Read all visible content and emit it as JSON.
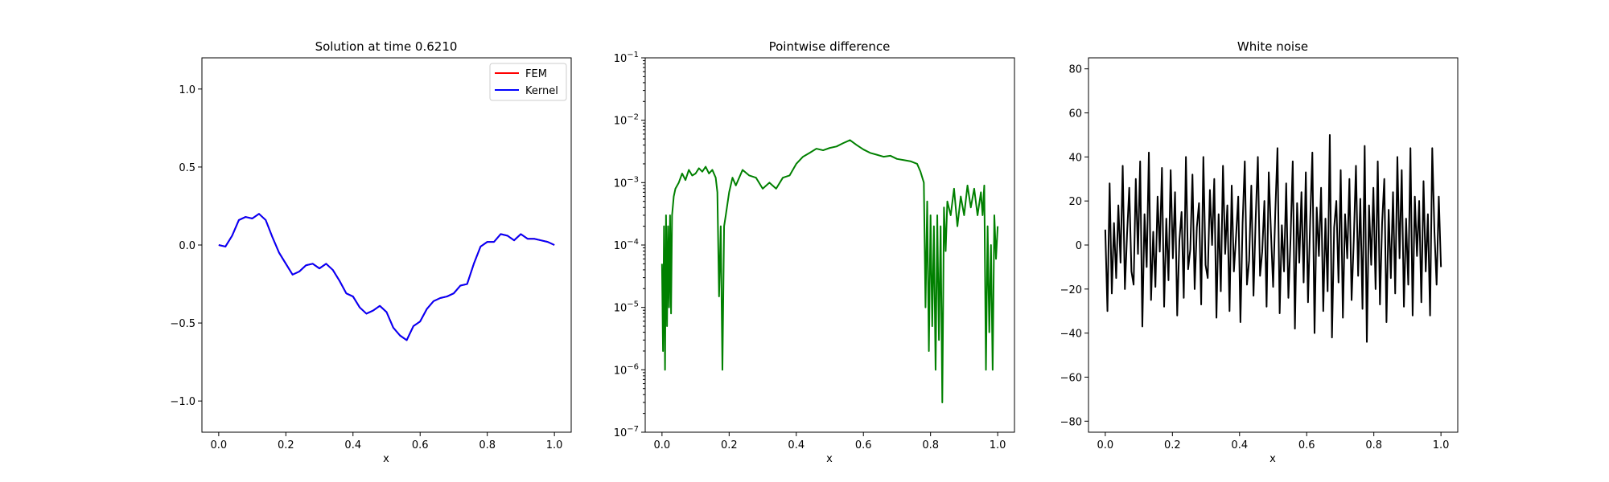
{
  "chart_data": [
    {
      "type": "line",
      "title": "Solution at time 0.6210",
      "xlabel": "x",
      "ylabel": "",
      "xlim": [
        -0.05,
        1.05
      ],
      "ylim": [
        -1.2,
        1.2
      ],
      "xticks": [
        0.0,
        0.2,
        0.4,
        0.6,
        0.8,
        1.0
      ],
      "xtick_labels": [
        "0.0",
        "0.2",
        "0.4",
        "0.6",
        "0.8",
        "1.0"
      ],
      "yticks": [
        -1.0,
        -0.5,
        0.0,
        0.5,
        1.0
      ],
      "ytick_labels": [
        "−1.0",
        "−0.5",
        "0.0",
        "0.5",
        "1.0"
      ],
      "grid": false,
      "legend_position": "top-right",
      "x": [
        0.0,
        0.02,
        0.04,
        0.06,
        0.08,
        0.1,
        0.12,
        0.14,
        0.16,
        0.18,
        0.2,
        0.22,
        0.24,
        0.26,
        0.28,
        0.3,
        0.32,
        0.34,
        0.36,
        0.38,
        0.4,
        0.42,
        0.44,
        0.46,
        0.48,
        0.5,
        0.52,
        0.54,
        0.56,
        0.58,
        0.6,
        0.62,
        0.64,
        0.66,
        0.68,
        0.7,
        0.72,
        0.74,
        0.76,
        0.78,
        0.8,
        0.82,
        0.84,
        0.86,
        0.88,
        0.9,
        0.92,
        0.94,
        0.96,
        0.98,
        1.0
      ],
      "series": [
        {
          "name": "FEM",
          "color": "#ff0000",
          "values": [
            0.0,
            -0.01,
            0.06,
            0.16,
            0.18,
            0.17,
            0.2,
            0.16,
            0.05,
            -0.05,
            -0.12,
            -0.19,
            -0.17,
            -0.13,
            -0.12,
            -0.15,
            -0.12,
            -0.16,
            -0.23,
            -0.31,
            -0.33,
            -0.4,
            -0.44,
            -0.42,
            -0.39,
            -0.43,
            -0.53,
            -0.58,
            -0.61,
            -0.52,
            -0.49,
            -0.41,
            -0.36,
            -0.34,
            -0.33,
            -0.31,
            -0.26,
            -0.25,
            -0.12,
            -0.01,
            0.02,
            0.02,
            0.07,
            0.06,
            0.03,
            0.07,
            0.04,
            0.04,
            0.03,
            0.02,
            0.0
          ]
        },
        {
          "name": "Kernel",
          "color": "#0000ff",
          "values": [
            0.0,
            -0.01,
            0.06,
            0.16,
            0.18,
            0.17,
            0.2,
            0.16,
            0.05,
            -0.05,
            -0.12,
            -0.19,
            -0.17,
            -0.13,
            -0.12,
            -0.15,
            -0.12,
            -0.16,
            -0.23,
            -0.31,
            -0.33,
            -0.4,
            -0.44,
            -0.42,
            -0.39,
            -0.43,
            -0.53,
            -0.58,
            -0.61,
            -0.52,
            -0.49,
            -0.41,
            -0.36,
            -0.34,
            -0.33,
            -0.31,
            -0.26,
            -0.25,
            -0.12,
            -0.01,
            0.02,
            0.02,
            0.07,
            0.06,
            0.03,
            0.07,
            0.04,
            0.04,
            0.03,
            0.02,
            0.0
          ]
        }
      ]
    },
    {
      "type": "line",
      "title": "Pointwise difference",
      "xlabel": "x",
      "ylabel": "",
      "yscale": "log",
      "xlim": [
        -0.05,
        1.05
      ],
      "ylim": [
        1e-07,
        0.1
      ],
      "xticks": [
        0.0,
        0.2,
        0.4,
        0.6,
        0.8,
        1.0
      ],
      "xtick_labels": [
        "0.0",
        "0.2",
        "0.4",
        "0.6",
        "0.8",
        "1.0"
      ],
      "yticks": [
        1e-07,
        1e-06,
        1e-05,
        0.0001,
        0.001,
        0.01,
        0.1
      ],
      "ytick_base": "10",
      "ytick_exponents": [
        "−7",
        "−6",
        "−5",
        "−4",
        "−3",
        "−2",
        "−1"
      ],
      "grid": false,
      "series": [
        {
          "color": "#008000",
          "x": [
            0.0,
            0.003,
            0.006,
            0.009,
            0.012,
            0.015,
            0.018,
            0.021,
            0.024,
            0.027,
            0.03,
            0.035,
            0.04,
            0.05,
            0.06,
            0.07,
            0.08,
            0.09,
            0.1,
            0.11,
            0.12,
            0.13,
            0.14,
            0.15,
            0.16,
            0.165,
            0.17,
            0.175,
            0.18,
            0.185,
            0.19,
            0.2,
            0.21,
            0.22,
            0.24,
            0.26,
            0.28,
            0.3,
            0.32,
            0.34,
            0.36,
            0.38,
            0.4,
            0.42,
            0.44,
            0.46,
            0.48,
            0.5,
            0.52,
            0.54,
            0.56,
            0.58,
            0.6,
            0.62,
            0.64,
            0.66,
            0.68,
            0.7,
            0.72,
            0.74,
            0.76,
            0.77,
            0.78,
            0.785,
            0.79,
            0.795,
            0.8,
            0.805,
            0.81,
            0.815,
            0.82,
            0.825,
            0.83,
            0.835,
            0.84,
            0.845,
            0.85,
            0.86,
            0.87,
            0.88,
            0.89,
            0.9,
            0.91,
            0.92,
            0.93,
            0.94,
            0.95,
            0.955,
            0.96,
            0.965,
            0.97,
            0.975,
            0.98,
            0.985,
            0.99,
            0.995,
            1.0
          ],
          "values": [
            5e-05,
            2e-06,
            0.0002,
            1e-06,
            0.0003,
            5e-06,
            0.0002,
            1e-05,
            0.0003,
            8e-06,
            0.0003,
            0.0006,
            0.0008,
            0.001,
            0.0014,
            0.0011,
            0.0016,
            0.0013,
            0.0014,
            0.0017,
            0.0015,
            0.0018,
            0.0014,
            0.0016,
            0.0012,
            0.0007,
            1.5e-05,
            0.0002,
            1e-06,
            0.0002,
            0.0003,
            0.0007,
            0.0012,
            0.0009,
            0.0016,
            0.0013,
            0.0012,
            0.0008,
            0.001,
            0.0008,
            0.0012,
            0.0013,
            0.002,
            0.0026,
            0.003,
            0.0035,
            0.0033,
            0.0036,
            0.0038,
            0.0043,
            0.0048,
            0.004,
            0.0034,
            0.003,
            0.0028,
            0.0026,
            0.0027,
            0.0024,
            0.0023,
            0.0022,
            0.002,
            0.0015,
            0.001,
            1e-05,
            0.0005,
            2e-06,
            0.0003,
            5e-06,
            0.0002,
            1e-06,
            0.0003,
            3e-06,
            0.0002,
            3e-07,
            0.0004,
            8e-05,
            0.0005,
            0.0003,
            0.0008,
            0.0002,
            0.0006,
            0.0003,
            0.0009,
            0.0004,
            0.0008,
            0.0003,
            0.0007,
            0.0003,
            0.0009,
            1e-06,
            0.0002,
            4e-06,
            0.0001,
            1e-06,
            0.0003,
            6e-05,
            0.0002
          ]
        }
      ]
    },
    {
      "type": "line",
      "title": "White noise",
      "xlabel": "x",
      "ylabel": "",
      "xlim": [
        -0.05,
        1.05
      ],
      "ylim": [
        -85,
        85
      ],
      "xticks": [
        0.0,
        0.2,
        0.4,
        0.6,
        0.8,
        1.0
      ],
      "xtick_labels": [
        "0.0",
        "0.2",
        "0.4",
        "0.6",
        "0.8",
        "1.0"
      ],
      "yticks": [
        -80,
        -60,
        -40,
        -20,
        0,
        20,
        40,
        60,
        80
      ],
      "ytick_labels": [
        "−80",
        "−60",
        "−40",
        "−20",
        "0",
        "20",
        "40",
        "60",
        "80"
      ],
      "grid": false,
      "series": [
        {
          "color": "#000000",
          "x_start": 0.0,
          "x_end": 1.0,
          "values": [
            7,
            -30,
            28,
            -22,
            10,
            -15,
            18,
            -8,
            36,
            -20,
            5,
            26,
            -12,
            -18,
            30,
            -4,
            38,
            -37,
            14,
            -10,
            42,
            -25,
            6,
            -19,
            22,
            -3,
            35,
            -28,
            12,
            -16,
            34,
            -6,
            24,
            -32,
            2,
            15,
            -24,
            40,
            -11,
            -2,
            32,
            -20,
            8,
            19,
            -27,
            40,
            -9,
            -15,
            25,
            0,
            30,
            -33,
            14,
            -21,
            36,
            -4,
            18,
            -30,
            27,
            -12,
            4,
            22,
            -35,
            10,
            38,
            -18,
            -7,
            27,
            -23,
            12,
            40,
            -14,
            -3,
            20,
            -28,
            33,
            6,
            -19,
            15,
            44,
            -31,
            9,
            -12,
            28,
            -24,
            3,
            38,
            -38,
            19,
            -8,
            24,
            -17,
            33,
            -26,
            11,
            42,
            -40,
            17,
            -5,
            26,
            -30,
            12,
            -21,
            50,
            -42,
            8,
            20,
            -17,
            34,
            -33,
            14,
            -6,
            30,
            -25,
            2,
            36,
            -14,
            21,
            -29,
            45,
            -44,
            18,
            -9,
            26,
            -20,
            38,
            -27,
            10,
            30,
            -35,
            16,
            -15,
            24,
            -22,
            40,
            -6,
            34,
            -28,
            12,
            -18,
            44,
            -32,
            22,
            -5,
            20,
            -26,
            29,
            -12,
            14,
            -32,
            44,
            6,
            -18,
            22,
            -10
          ]
        }
      ]
    }
  ]
}
